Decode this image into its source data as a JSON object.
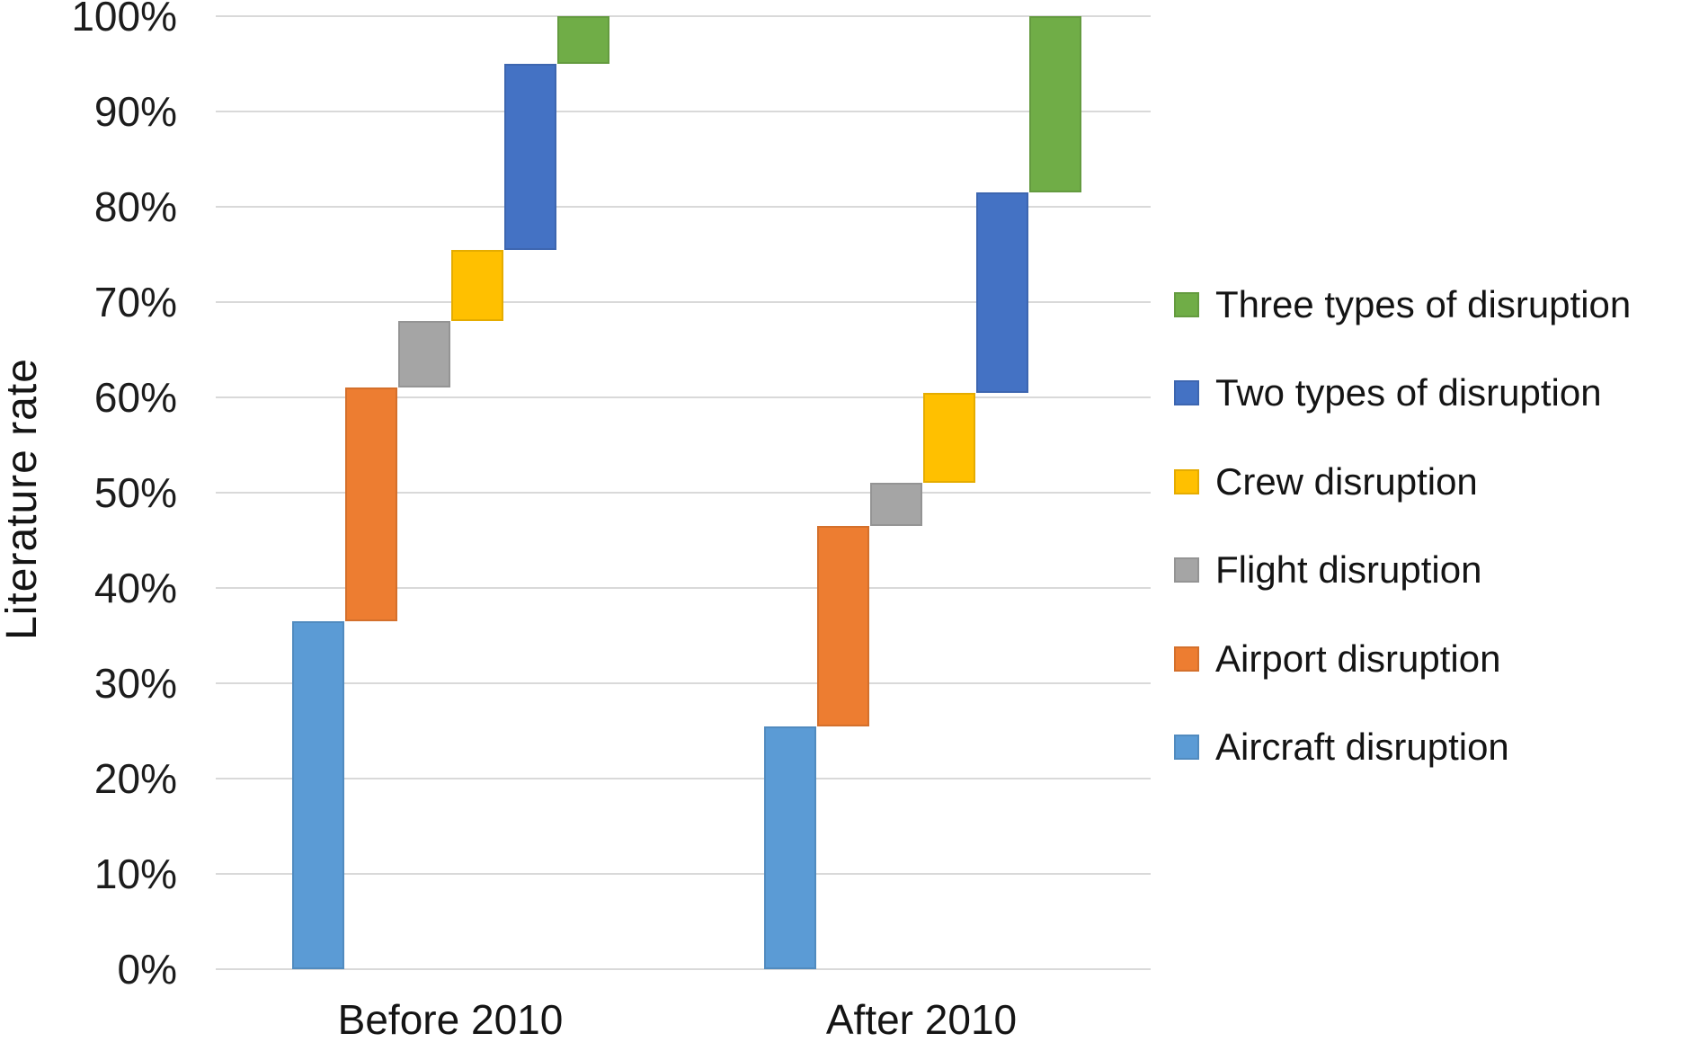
{
  "chart_data": {
    "type": "bar",
    "subtype": "waterfall-stacked",
    "title": "",
    "xlabel": "",
    "ylabel": "Literature rate",
    "categories": [
      "Before 2010",
      "After 2010"
    ],
    "ylim": [
      0,
      100
    ],
    "grid": true,
    "legend_position": "right",
    "y_ticks": [
      {
        "value": 100,
        "label": "100%"
      },
      {
        "value": 90,
        "label": "90%"
      },
      {
        "value": 80,
        "label": "80%"
      },
      {
        "value": 70,
        "label": "70%"
      },
      {
        "value": 60,
        "label": "60%"
      },
      {
        "value": 50,
        "label": "50%"
      },
      {
        "value": 40,
        "label": "40%"
      },
      {
        "value": 30,
        "label": "30%"
      },
      {
        "value": 20,
        "label": "20%"
      },
      {
        "value": 10,
        "label": "10%"
      },
      {
        "value": 0,
        "label": "0%"
      }
    ],
    "series": [
      {
        "name": "Aircraft disruption",
        "color": "#5B9BD5",
        "ranges": [
          [
            0,
            36.5
          ],
          [
            0,
            25.5
          ]
        ]
      },
      {
        "name": "Airport disruption",
        "color": "#ED7D31",
        "ranges": [
          [
            36.5,
            61
          ],
          [
            25.5,
            46.5
          ]
        ]
      },
      {
        "name": "Flight disruption",
        "color": "#A5A5A5",
        "ranges": [
          [
            61,
            68
          ],
          [
            46.5,
            51
          ]
        ]
      },
      {
        "name": "Crew disruption",
        "color": "#FFC000",
        "ranges": [
          [
            68,
            75.5
          ],
          [
            51,
            60.5
          ]
        ]
      },
      {
        "name": "Two types of disruption",
        "color": "#4472C4",
        "ranges": [
          [
            75.5,
            95
          ],
          [
            60.5,
            81.5
          ]
        ]
      },
      {
        "name": "Three types of disruption",
        "color": "#70AD47",
        "ranges": [
          [
            95,
            100
          ],
          [
            81.5,
            100
          ]
        ]
      }
    ],
    "legend": [
      "Three types of disruption",
      "Two types of disruption",
      "Crew disruption",
      "Flight disruption",
      "Airport disruption",
      "Aircraft disruption"
    ]
  }
}
